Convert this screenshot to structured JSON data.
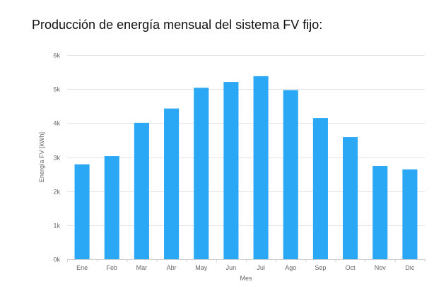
{
  "chart_data": {
    "type": "bar",
    "title": "Producción de energía mensual del sistema FV fijo:",
    "xlabel": "Mes",
    "ylabel": "Energía FV  [kWh]",
    "categories": [
      "Ene",
      "Feb",
      "Mar",
      "Abr",
      "May",
      "Jun",
      "Jul",
      "Ago",
      "Sep",
      "Oct",
      "Nov",
      "Dic"
    ],
    "values": [
      2790,
      3030,
      4010,
      4430,
      5040,
      5210,
      5380,
      4970,
      4150,
      3590,
      2740,
      2640
    ],
    "ylim": [
      0,
      6000
    ],
    "yticks": [
      0,
      1000,
      2000,
      3000,
      4000,
      5000,
      6000
    ],
    "ytick_labels": [
      "0k",
      "1k",
      "2k",
      "3k",
      "4k",
      "5k",
      "6k"
    ],
    "grid": true,
    "legend": "none",
    "bar_color": "#2aa8f5"
  }
}
